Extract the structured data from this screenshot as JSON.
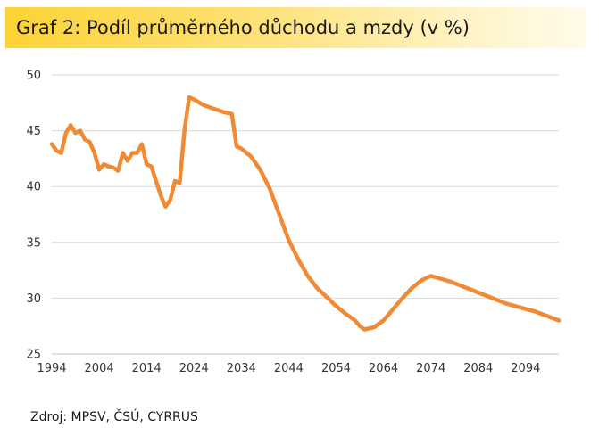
{
  "title": "Graf 2: Podíl průměrného důchodu a mzdy (v %)",
  "source": "Zdroj: MPSV, ČSÚ, CYRRUS",
  "colors": {
    "line": "#f08a34",
    "grid": "#d9d9d9",
    "title_bg": "#fcd336"
  },
  "chart_data": {
    "type": "line",
    "title": "Graf 2: Podíl průměrného důchodu a mzdy (v %)",
    "xlabel": "",
    "ylabel": "",
    "xlim": [
      1994,
      2101
    ],
    "ylim": [
      25,
      50
    ],
    "grid": true,
    "legend": "none",
    "x_ticks": [
      1994,
      2004,
      2014,
      2024,
      2034,
      2044,
      2054,
      2064,
      2074,
      2084,
      2094
    ],
    "y_ticks": [
      25,
      30,
      35,
      40,
      45,
      50
    ],
    "series": [
      {
        "x": [
          1994,
          1995,
          1996,
          1997,
          1998,
          1999,
          2000,
          2001,
          2002,
          2003,
          2004,
          2005,
          2006,
          2007,
          2008,
          2009,
          2010,
          2011,
          2012,
          2013,
          2014,
          2015,
          2016,
          2017,
          2018,
          2019,
          2020,
          2021,
          2022,
          2023,
          2024,
          2026,
          2028,
          2030,
          2031,
          2032,
          2033,
          2034,
          2036,
          2038,
          2040,
          2042,
          2044,
          2046,
          2048,
          2050,
          2052,
          2054,
          2056,
          2058,
          2059,
          2060,
          2062,
          2064,
          2066,
          2068,
          2070,
          2072,
          2074,
          2078,
          2084,
          2090,
          2096,
          2101
        ],
        "values": [
          43.8,
          43.2,
          43.0,
          44.8,
          45.5,
          44.8,
          45.0,
          44.2,
          44.0,
          43.0,
          41.5,
          42.0,
          41.8,
          41.7,
          41.4,
          43.0,
          42.3,
          43.0,
          43.0,
          43.8,
          42.0,
          41.8,
          40.5,
          39.2,
          38.2,
          38.8,
          40.5,
          40.3,
          45.0,
          48.0,
          47.8,
          47.3,
          47.0,
          46.7,
          46.6,
          46.5,
          43.6,
          43.4,
          42.7,
          41.5,
          39.8,
          37.5,
          35.2,
          33.5,
          32.0,
          30.9,
          30.1,
          29.3,
          28.6,
          28.0,
          27.5,
          27.2,
          27.4,
          28.0,
          29.0,
          30.0,
          30.9,
          31.6,
          32.0,
          31.5,
          30.5,
          29.5,
          28.8,
          28.0
        ]
      }
    ]
  }
}
